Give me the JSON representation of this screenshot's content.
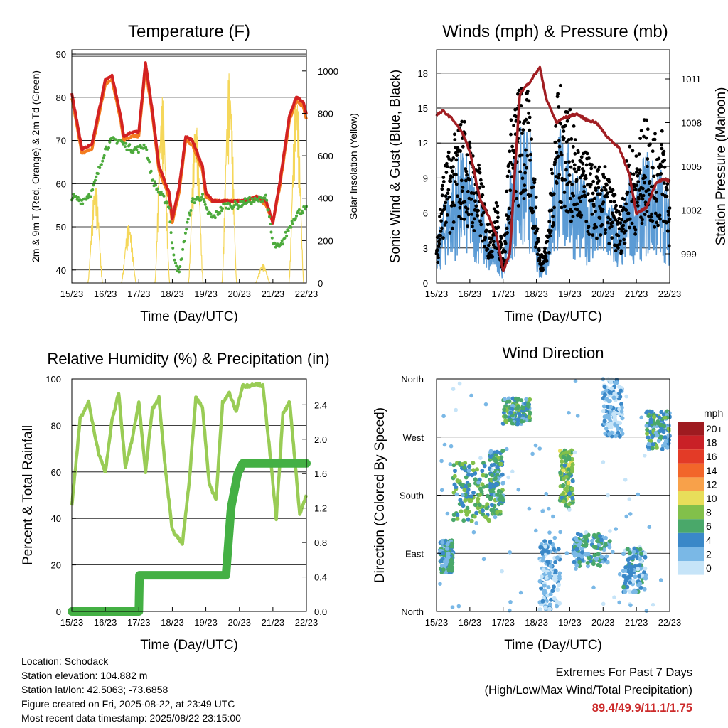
{
  "x_ticks": [
    "15/23",
    "16/23",
    "17/23",
    "18/23",
    "19/23",
    "20/23",
    "21/23",
    "22/23"
  ],
  "x_label": "Time (Day/UTC)",
  "colors": {
    "temp_red": "#d32222",
    "temp_orange": "#f47c1e",
    "dewpoint_green": "#4caa3c",
    "solar_yellow": "#f5d75a",
    "gust_black": "#000000",
    "wind_blue": "#5b9bd5",
    "pressure_maroon": "#a11d22",
    "rh_lightgreen": "#99cc55",
    "precip_green": "#44b044"
  },
  "panels": {
    "temperature": {
      "title": "Temperature (F)",
      "ylabel_left": "2m & 9m T (Red, Orange) & 2m Td (Green)",
      "ylabel_right": "Solar Insolation (Yellow)",
      "left_ticks": [
        "40",
        "50",
        "60",
        "70",
        "80",
        "90"
      ],
      "right_ticks": [
        "0",
        "200",
        "400",
        "600",
        "800",
        "1000"
      ]
    },
    "winds": {
      "title": "Winds (mph) & Pressure (mb)",
      "ylabel_left": "Sonic Wind & Gust (Blue, Black)",
      "ylabel_right": "Station Pressure (Maroon)",
      "left_ticks": [
        "0",
        "3",
        "6",
        "9",
        "12",
        "15",
        "18"
      ],
      "right_ticks": [
        "999",
        "1002",
        "1005",
        "1008",
        "1011"
      ]
    },
    "humidity": {
      "title": "Relative Humidity (%) & Precipitation (in)",
      "ylabel_left": "Percent & Total Rainfall",
      "left_ticks": [
        "0",
        "20",
        "40",
        "60",
        "80",
        "100"
      ],
      "right_ticks": [
        "0.0",
        "0.4",
        "0.8",
        "1.2",
        "1.6",
        "2.0",
        "2.4"
      ]
    },
    "direction": {
      "title": "Wind Direction",
      "ylabel_left": "Direction (Colored By Speed)",
      "left_ticks": [
        "North",
        "East",
        "South",
        "West",
        "North"
      ],
      "legend_title": "mph",
      "legend_labels": [
        "20+",
        "18",
        "16",
        "14",
        "12",
        "10",
        "8",
        "6",
        "4",
        "2",
        "0"
      ],
      "legend_colors": [
        "#9e1b20",
        "#c92127",
        "#e33b27",
        "#f2662a",
        "#f8a14a",
        "#e8de5a",
        "#82c04a",
        "#4aa86a",
        "#3a88c8",
        "#7ab8e6",
        "#c6e4f8"
      ]
    }
  },
  "station_info": {
    "location": "Location: Schodack",
    "elevation": "Station elevation: 104.882 m",
    "latlon": "Station lat/lon: 42.5063; -73.6858",
    "created": "Figure created on Fri, 2025-08-22, at 23:49 UTC",
    "recent": "Most recent data timestamp: 2025/08/22 23:15:00"
  },
  "extremes": {
    "line1": "Extremes For Past 7 Days",
    "line2": "(High/Low/Max Wind/Total Precipitation)",
    "values": "89.4/49.9/11.1/1.75"
  },
  "chart_data": [
    {
      "type": "line",
      "title": "Temperature (F)",
      "xlabel": "Time (Day/UTC)",
      "ylabel": "2m & 9m T (Red, Orange) & 2m Td (Green)",
      "y2label": "Solar Insolation (Yellow)",
      "ylim": [
        37,
        91
      ],
      "y2lim": [
        0,
        1100
      ],
      "x_days": [
        0,
        0.3,
        0.6,
        1,
        1.2,
        1.45,
        1.55,
        1.8,
        2,
        2.2,
        2.4,
        2.6,
        2.9,
        3,
        3.2,
        3.4,
        3.6,
        3.9,
        4,
        4.2,
        4.45,
        4.55,
        4.8,
        5,
        5.2,
        5.5,
        5.8,
        6.0,
        6.2,
        6.5,
        6.7,
        6.9,
        7
      ],
      "series": [
        {
          "name": "2m T",
          "values": [
            81,
            68,
            69,
            84,
            85,
            76,
            71,
            72,
            72,
            88,
            77,
            64,
            58,
            52,
            59,
            71,
            70,
            64,
            58,
            56,
            56,
            56,
            56,
            56,
            56,
            57,
            56,
            51,
            60,
            76,
            80,
            79,
            76
          ]
        },
        {
          "name": "9m T",
          "values": [
            80,
            67,
            68,
            83,
            84,
            75,
            70,
            71,
            71,
            87,
            76,
            63,
            57,
            51,
            58,
            70,
            69,
            63,
            57,
            56,
            56,
            56,
            56,
            56,
            56,
            57,
            55,
            51,
            59,
            75,
            79,
            78,
            75
          ]
        },
        {
          "name": "2m Td",
          "values": [
            57,
            56,
            58,
            68,
            70,
            70,
            69,
            68,
            68,
            69,
            61,
            58,
            55,
            45,
            39,
            49,
            56,
            57,
            54,
            52,
            54,
            55,
            55,
            55,
            56,
            56,
            57,
            46,
            45,
            50,
            53,
            54,
            54
          ]
        },
        {
          "name": "Solar",
          "peaks_x": [
            0.7,
            1.7,
            2.7,
            3.7,
            4.7,
            5.7,
            6.7
          ],
          "peaks": [
            470,
            280,
            880,
            780,
            1000,
            90,
            920
          ]
        }
      ]
    },
    {
      "type": "scatter",
      "title": "Winds (mph) & Pressure (mb)",
      "xlabel": "Time (Day/UTC)",
      "ylabel": "Sonic Wind & Gust (Blue, Black)",
      "y2label": "Station Pressure (Maroon)",
      "ylim": [
        0,
        20
      ],
      "y2lim": [
        997,
        1013
      ],
      "x_days": [
        0,
        0.2,
        0.5,
        0.8,
        1,
        1.3,
        1.6,
        1.8,
        2,
        2.2,
        2.5,
        2.8,
        3.1,
        3.3,
        3.6,
        3.8,
        4.2,
        4.5,
        4.8,
        5.1,
        5.5,
        5.8,
        6.0,
        6.3,
        6.6,
        6.8,
        7
      ],
      "series": [
        {
          "name": "Sonic Wind",
          "values": [
            2,
            4,
            6,
            7,
            6,
            5,
            2,
            3,
            1,
            6,
            8,
            8,
            1,
            2,
            8,
            8,
            6,
            5,
            5,
            5,
            3,
            6,
            5,
            7,
            6,
            6,
            4
          ]
        },
        {
          "name": "Gust",
          "values": [
            3,
            8,
            10,
            12,
            10,
            8,
            4,
            6,
            2,
            11,
            14,
            13,
            2,
            3,
            13,
            14,
            10,
            9,
            8,
            8,
            5,
            10,
            9,
            12,
            10,
            11,
            6
          ]
        },
        {
          "name": "Station Pressure",
          "values": [
            1008.5,
            1008.8,
            1008.2,
            1007.2,
            1006.0,
            1002.8,
            1001.4,
            1000.3,
            997.8,
            999.0,
            1010.0,
            1010.8,
            1011.8,
            1009.6,
            1008.0,
            1008.3,
            1008.6,
            1008.2,
            1008.0,
            1007.1,
            1006.2,
            1004.4,
            1001.7,
            1002.2,
            1003.9,
            1004.1,
            1004.0
          ]
        }
      ]
    },
    {
      "type": "line",
      "title": "Relative Humidity (%) & Precipitation (in)",
      "xlabel": "Time (Day/UTC)",
      "ylabel": "Percent & Total Rainfall",
      "ylim": [
        0,
        100
      ],
      "y2lim": [
        0,
        2.7
      ],
      "x_days": [
        0,
        0.25,
        0.5,
        0.8,
        1.0,
        1.2,
        1.4,
        1.6,
        1.8,
        2.0,
        2.2,
        2.4,
        2.6,
        2.8,
        3.0,
        3.3,
        3.5,
        3.7,
        3.9,
        4.1,
        4.3,
        4.5,
        4.7,
        4.9,
        5.1,
        5.3,
        5.5,
        5.7,
        5.9,
        6.1,
        6.3,
        6.5,
        6.8,
        7
      ],
      "series": [
        {
          "name": "RH",
          "values": [
            45,
            83,
            90,
            68,
            60,
            82,
            94,
            62,
            74,
            90,
            60,
            87,
            92,
            60,
            35,
            29,
            55,
            92,
            88,
            55,
            48,
            90,
            94,
            86,
            97,
            97,
            98,
            97,
            70,
            40,
            85,
            90,
            42,
            50
          ]
        },
        {
          "name": "Total Precipitation",
          "x_steps": [
            0,
            2.0,
            2.02,
            4.6,
            4.75,
            4.95,
            5.1,
            7
          ],
          "values": [
            0,
            0,
            0.42,
            0.42,
            1.2,
            1.6,
            1.72,
            1.72
          ]
        }
      ]
    },
    {
      "type": "scatter",
      "title": "Wind Direction",
      "xlabel": "Time (Day/UTC)",
      "ylabel": "Direction (Colored By Speed)",
      "ylim": [
        0,
        360
      ],
      "clusters": [
        {
          "x": [
            0.1,
            0.5
          ],
          "dir": [
            60,
            110
          ],
          "speed": 4
        },
        {
          "x": [
            0.5,
            1.6
          ],
          "dir": [
            140,
            230
          ],
          "speed": 6
        },
        {
          "x": [
            1.6,
            2.0
          ],
          "dir": [
            150,
            250
          ],
          "speed": 5
        },
        {
          "x": [
            2.0,
            2.8
          ],
          "dir": [
            290,
            330
          ],
          "speed": 5
        },
        {
          "x": [
            3.1,
            3.7
          ],
          "dir": [
            0,
            110
          ],
          "speed": 2
        },
        {
          "x": [
            3.7,
            4.1
          ],
          "dir": [
            160,
            250
          ],
          "speed": 7
        },
        {
          "x": [
            4.1,
            5.2
          ],
          "dir": [
            70,
            120
          ],
          "speed": 4
        },
        {
          "x": [
            5.0,
            5.6
          ],
          "dir": [
            270,
            360
          ],
          "speed": 2
        },
        {
          "x": [
            5.6,
            6.3
          ],
          "dir": [
            30,
            100
          ],
          "speed": 3
        },
        {
          "x": [
            6.3,
            7.0
          ],
          "dir": [
            250,
            310
          ],
          "speed": 5
        }
      ]
    }
  ]
}
